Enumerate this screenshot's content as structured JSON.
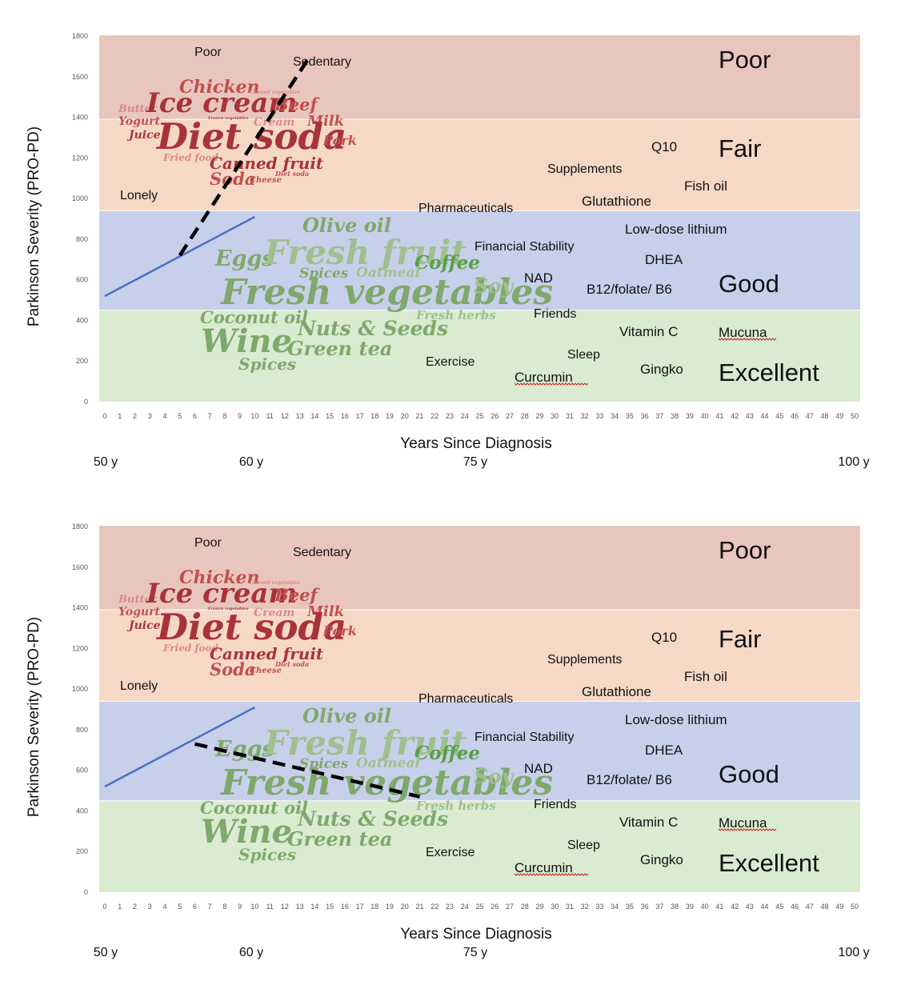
{
  "colors": {
    "poor": "#e9c6bd",
    "fair": "#f6d8c6",
    "good": "#c7d0ea",
    "excellent": "#d9ebd0",
    "trend_line": "#4a6fc2",
    "projection": "#000000",
    "red_dark": "#a8323a",
    "red_mid": "#c0504d",
    "red_light": "#dc8a8a",
    "green_dark": "#5a9e4a",
    "green_mid": "#7fa86c",
    "green_light": "#9fc08e",
    "spellcheck": "#cc2222"
  },
  "charts": [
    {
      "id": "top",
      "xlabel": "Years Since Diagnosis",
      "ylabel": "Parkinson Severity (PRO-PD)",
      "projection": {
        "x": [
          5,
          13.5
        ],
        "y": [
          720,
          1680
        ]
      }
    },
    {
      "id": "bottom",
      "xlabel": "Years Since Diagnosis",
      "ylabel": "Parkinson Severity (PRO-PD)",
      "projection": {
        "x": [
          6,
          21
        ],
        "y": [
          730,
          470
        ]
      }
    }
  ],
  "chart_data": [
    {
      "type": "line",
      "x": [
        0,
        10
      ],
      "y": [
        520,
        910
      ],
      "xlim": [
        0,
        50
      ],
      "ylim": [
        0,
        1800
      ],
      "xticks": [
        0,
        1,
        2,
        3,
        4,
        5,
        6,
        7,
        8,
        9,
        10,
        11,
        12,
        13,
        14,
        15,
        16,
        17,
        18,
        19,
        20,
        21,
        22,
        23,
        24,
        25,
        26,
        27,
        28,
        29,
        30,
        31,
        32,
        33,
        34,
        35,
        36,
        37,
        38,
        39,
        40,
        41,
        42,
        43,
        44,
        45,
        46,
        47,
        48,
        49,
        50
      ],
      "yticks": [
        0,
        200,
        400,
        600,
        800,
        1000,
        1200,
        1400,
        1600,
        1800
      ],
      "xlabel": "Years Since Diagnosis",
      "ylabel": "Parkinson Severity (PRO-PD)",
      "age_labels": [
        "50 y",
        "60 y",
        "75 y",
        "100 y"
      ],
      "bands": [
        {
          "label": "Excellent",
          "from": 0,
          "to": 450
        },
        {
          "label": "Good",
          "from": 450,
          "to": 940
        },
        {
          "label": "Fair",
          "from": 940,
          "to": 1390
        },
        {
          "label": "Poor",
          "from": 1390,
          "to": 1800
        }
      ],
      "projection": {
        "x": [
          5,
          13.5
        ],
        "y": [
          720,
          1680
        ]
      }
    },
    {
      "type": "line",
      "x": [
        0,
        10
      ],
      "y": [
        520,
        910
      ],
      "xlim": [
        0,
        50
      ],
      "ylim": [
        0,
        1800
      ],
      "xticks": [
        0,
        1,
        2,
        3,
        4,
        5,
        6,
        7,
        8,
        9,
        10,
        11,
        12,
        13,
        14,
        15,
        16,
        17,
        18,
        19,
        20,
        21,
        22,
        23,
        24,
        25,
        26,
        27,
        28,
        29,
        30,
        31,
        32,
        33,
        34,
        35,
        36,
        37,
        38,
        39,
        40,
        41,
        42,
        43,
        44,
        45,
        46,
        47,
        48,
        49,
        50
      ],
      "yticks": [
        0,
        200,
        400,
        600,
        800,
        1000,
        1200,
        1400,
        1600,
        1800
      ],
      "xlabel": "Years Since Diagnosis",
      "ylabel": "Parkinson Severity (PRO-PD)",
      "age_labels": [
        "50 y",
        "60 y",
        "75 y",
        "100 y"
      ],
      "bands": [
        {
          "label": "Excellent",
          "from": 0,
          "to": 450
        },
        {
          "label": "Good",
          "from": 450,
          "to": 940
        },
        {
          "label": "Fair",
          "from": 940,
          "to": 1390
        },
        {
          "label": "Poor",
          "from": 1390,
          "to": 1800
        }
      ],
      "projection": {
        "x": [
          6,
          21
        ],
        "y": [
          730,
          470
        ]
      }
    }
  ],
  "zone_labels": [
    "Poor",
    "Fair",
    "Good",
    "Excellent"
  ],
  "factors": {
    "poor_small": "Poor",
    "sedentary": "Sedentary",
    "lonely": "Lonely",
    "pharmaceuticals": "Pharmaceuticals",
    "supplements": "Supplements",
    "q10": "Q10",
    "fish_oil": "Fish oil",
    "glutathione": "Glutathione",
    "low_dose_lithium": "Low-dose lithium",
    "financial_stability": "Financial Stability",
    "dhea": "DHEA",
    "nad": "NAD",
    "b12": "B12/folate/ B6",
    "friends": "Friends",
    "vitamin_c": "Vitamin C",
    "mucuna": "Mucuna",
    "exercise": "Exercise",
    "sleep": "Sleep",
    "curcumin": "Curcumin",
    "gingko": "Gingko"
  },
  "bad_foods": {
    "chicken": "Chicken",
    "canned_vegetables": "Canned vegetables",
    "butter": "Butter",
    "ice_cream": "Ice cream",
    "beef": "Beef",
    "yogurt": "Yogurt",
    "frozen_vegetables": "Frozen vegetables",
    "cream": "Cream",
    "milk": "Milk",
    "juice": "Juice",
    "diet_soda": "Diet soda",
    "pork": "Pork",
    "fried_food": "Fried food",
    "canned_fruit": "Canned fruit",
    "soda": "Soda",
    "cheese": "Cheese",
    "diet_soda_small": "Diet soda"
  },
  "good_foods": {
    "olive_oil": "Olive oil",
    "eggs": "Eggs",
    "fresh_fruit": "Fresh fruit",
    "coffee": "Coffee",
    "spices_small": "Spices",
    "oatmeal": "Oatmeal",
    "fresh_vegetables": "Fresh vegetables",
    "soy": "Soy",
    "coconut_oil": "Coconut oil",
    "fresh_herbs": "Fresh herbs",
    "nuts_seeds": "Nuts & Seeds",
    "wine": "Wine",
    "green_tea": "Green tea",
    "spices": "Spices"
  }
}
